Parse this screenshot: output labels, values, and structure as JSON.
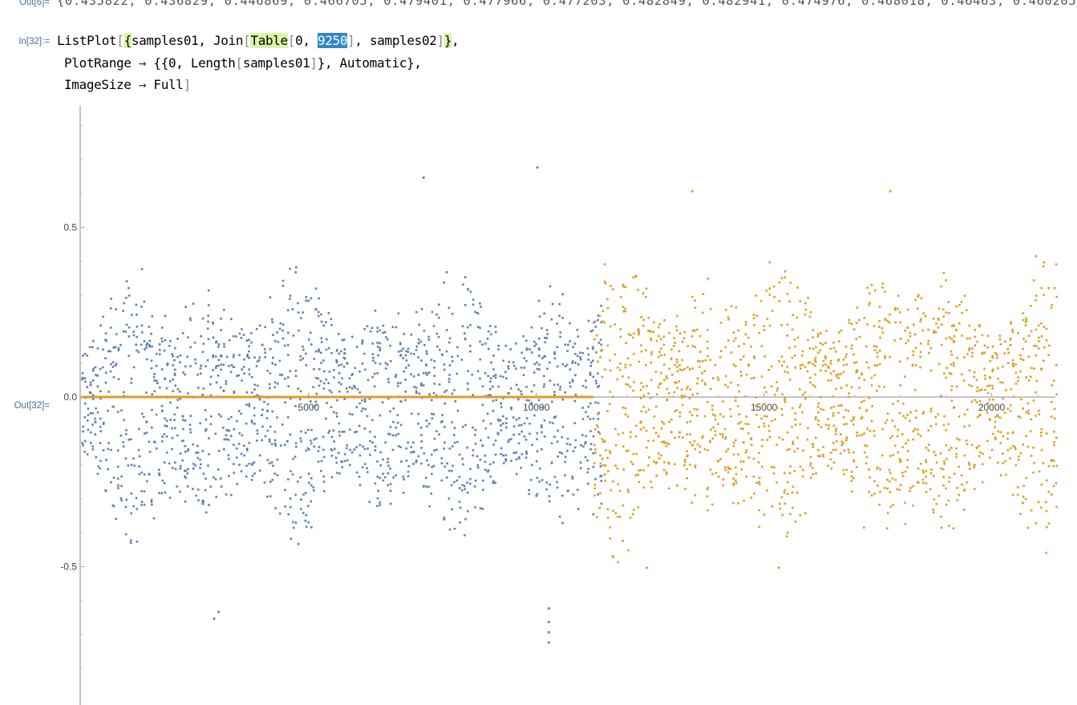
{
  "out6": {
    "label": "Out[6]=",
    "text": "{0.435822, 0.436829, 0.446869, 0.466705, 0.479401, 0.477966, 0.477203, 0.482849, 0.482941, 0.474976, 0.468018, 0.46463, 0.460205, 0."
  },
  "in32": {
    "label": "In[32]:=",
    "line1": {
      "a": "ListPlot",
      "b": "[",
      "c": "{",
      "d": "samples01, Join",
      "e": "[",
      "f": "Table",
      "g": "[",
      "h": "0, ",
      "i": "9250",
      "j": "]",
      "k": ", samples02",
      "l": "]",
      "m": "}",
      "n": ","
    },
    "line2": {
      "a": "PlotRange ",
      "arrow": "→",
      "b": " {{0, Length",
      "c": "[",
      "d": "samples01",
      "e": "]",
      "f": "}, Automatic},"
    },
    "line3": {
      "a": "ImageSize ",
      "arrow": "→",
      "b": " Full",
      "c": "]"
    }
  },
  "out32": {
    "label": "Out[32]="
  },
  "chart_data": {
    "type": "scatter",
    "xlim": [
      0,
      21400
    ],
    "ylim": [
      -0.9,
      0.85
    ],
    "y_ticks": [
      0.5,
      0.0,
      -0.5
    ],
    "y_tick_labels": [
      "0.5",
      "0.0",
      "-0.5"
    ],
    "x_ticks": [
      5000,
      10000,
      15000,
      20000
    ],
    "x_tick_labels": [
      "5000",
      "10000",
      "15000",
      "20000"
    ],
    "series": [
      {
        "color": "#5d81b4",
        "segments": [
          {
            "x_start": 0,
            "x_end": 11400,
            "amplitude": 0.33,
            "y_center": -0.02
          }
        ],
        "outliers": [
          {
            "x": 10250,
            "y": -0.72
          },
          {
            "x": 10250,
            "y": -0.69
          },
          {
            "x": 10250,
            "y": -0.66
          },
          {
            "x": 10250,
            "y": -0.62
          },
          {
            "x": 10000,
            "y": 0.68
          },
          {
            "x": 7500,
            "y": 0.65
          },
          {
            "x": 3000,
            "y": -0.63
          },
          {
            "x": 2900,
            "y": -0.65
          }
        ]
      },
      {
        "color": "#e09c24",
        "segments": [
          {
            "x_start": 0,
            "x_end": 11250,
            "amplitude": 0.0,
            "y_center": 0.0
          },
          {
            "x_start": 11250,
            "x_end": 21400,
            "amplitude": 0.36,
            "y_center": -0.01
          }
        ],
        "outliers": [
          {
            "x": 12400,
            "y": -0.5
          },
          {
            "x": 15300,
            "y": -0.5
          },
          {
            "x": 13400,
            "y": 0.61
          },
          {
            "x": 17750,
            "y": 0.61
          }
        ]
      }
    ]
  }
}
